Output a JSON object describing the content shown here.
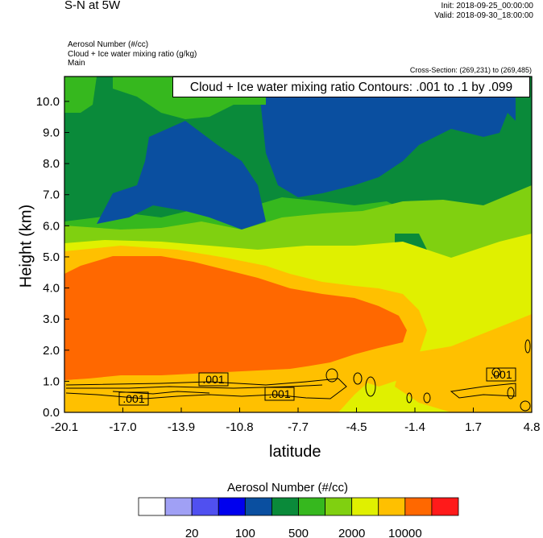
{
  "header": {
    "title": "S-N at 5W",
    "init": "Init: 2018-09-25_00:00:00",
    "valid": "Valid: 2018-09-30_18:00:00",
    "field1": "Aerosol Number   (#/cc)",
    "field2": "Cloud + Ice water mixing ratio   (g/kg)",
    "field3": "Main",
    "cross_section": "Cross-Section: (269,231) to (269,485)",
    "contour_info": "Cloud + Ice water mixing ratio Contours: .001 to .1 by .099"
  },
  "chart_data": {
    "type": "heatmap",
    "title": "S-N at 5W",
    "xlabel": "latitude",
    "ylabel": "Height (km)",
    "x_ticks": [
      "-20.1",
      "-17.0",
      "-13.9",
      "-10.8",
      "-7.7",
      "-4.5",
      "-1.4",
      "1.7",
      "4.8"
    ],
    "y_ticks": [
      "0.0",
      "1.0",
      "2.0",
      "3.0",
      "4.0",
      "5.0",
      "6.0",
      "7.0",
      "8.0",
      "9.0",
      "10.0"
    ],
    "xlim": [
      -20.1,
      4.8
    ],
    "ylim": [
      0,
      10.8
    ],
    "colorbar": {
      "title": "Aerosol Number  (#/cc)",
      "colors": [
        "#ffffff",
        "#a0a0f5",
        "#5050f0",
        "#0000ee",
        "#0a4fa0",
        "#0a8a3a",
        "#36b81e",
        "#80d010",
        "#e0f000",
        "#ffc000",
        "#ff6800",
        "#ff1a1a"
      ],
      "tick_labels": [
        "20",
        "100",
        "500",
        "2000",
        "10000"
      ]
    },
    "contour_labels": [
      ".001",
      ".001",
      ".001",
      ".001"
    ]
  }
}
